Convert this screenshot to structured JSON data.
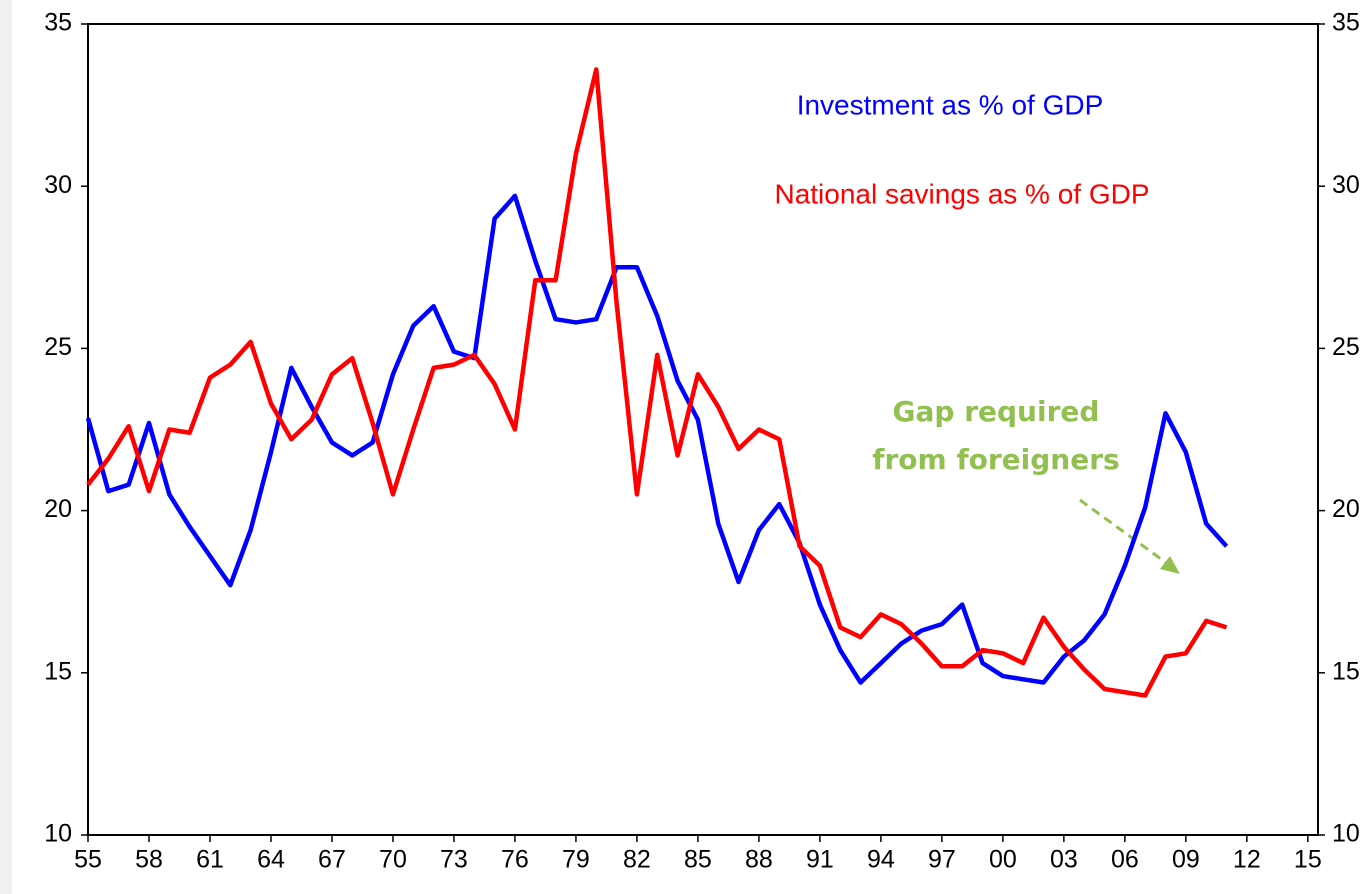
{
  "chart_data": {
    "type": "line",
    "x": [
      1955,
      1956,
      1957,
      1958,
      1959,
      1960,
      1961,
      1962,
      1963,
      1964,
      1965,
      1966,
      1967,
      1968,
      1969,
      1970,
      1971,
      1972,
      1973,
      1974,
      1975,
      1976,
      1977,
      1978,
      1979,
      1980,
      1981,
      1982,
      1983,
      1984,
      1985,
      1986,
      1987,
      1988,
      1989,
      1990,
      1991,
      1992,
      1993,
      1994,
      1995,
      1996,
      1997,
      1998,
      1999,
      2000,
      2001,
      2002,
      2003,
      2004,
      2005,
      2006,
      2007,
      2008,
      2009,
      2010,
      2011
    ],
    "series": [
      {
        "name": "Investment as % of GDP",
        "color": "#0000ff",
        "values": [
          22.85,
          20.6,
          20.8,
          22.7,
          20.5,
          19.5,
          18.6,
          17.7,
          19.4,
          21.8,
          24.4,
          23.2,
          22.1,
          21.7,
          22.1,
          24.2,
          25.7,
          26.3,
          24.9,
          24.7,
          29.0,
          29.7,
          27.7,
          25.9,
          25.8,
          25.9,
          27.5,
          27.5,
          26.0,
          24.0,
          22.8,
          19.6,
          17.8,
          19.4,
          20.2,
          19.0,
          17.1,
          15.7,
          14.7,
          15.3,
          15.9,
          16.3,
          16.5,
          17.1,
          15.3,
          14.9,
          14.8,
          14.7,
          15.5,
          16.0,
          16.8,
          18.3,
          20.1,
          23.0,
          21.8,
          19.6,
          18.9
        ]
      },
      {
        "name": "National savings as % of GDP",
        "color": "#ff0000",
        "values": [
          20.8,
          21.6,
          22.6,
          20.6,
          22.5,
          22.4,
          24.1,
          24.5,
          25.2,
          23.3,
          22.2,
          22.8,
          24.2,
          24.7,
          22.7,
          20.5,
          22.5,
          24.4,
          24.5,
          24.8,
          23.9,
          22.5,
          27.1,
          27.1,
          31.0,
          33.6,
          26.4,
          20.5,
          24.8,
          21.7,
          24.2,
          23.2,
          21.9,
          22.5,
          22.2,
          18.9,
          18.3,
          16.4,
          16.1,
          16.8,
          16.5,
          15.9,
          15.2,
          15.2,
          15.7,
          15.6,
          15.3,
          16.7,
          15.8,
          15.1,
          14.5,
          14.4,
          14.3,
          15.5,
          15.6,
          16.6,
          16.4
        ]
      }
    ],
    "annotation": [
      "Gap required",
      "from foreigners"
    ],
    "annotation_color": "#92c050",
    "xlim": [
      1955,
      2015.5
    ],
    "xticks": [
      {
        "value": 1955,
        "label": "55"
      },
      {
        "value": 1958,
        "label": "58"
      },
      {
        "value": 1961,
        "label": "61"
      },
      {
        "value": 1964,
        "label": "64"
      },
      {
        "value": 1967,
        "label": "67"
      },
      {
        "value": 1970,
        "label": "70"
      },
      {
        "value": 1973,
        "label": "73"
      },
      {
        "value": 1976,
        "label": "76"
      },
      {
        "value": 1979,
        "label": "79"
      },
      {
        "value": 1982,
        "label": "82"
      },
      {
        "value": 1985,
        "label": "85"
      },
      {
        "value": 1988,
        "label": "88"
      },
      {
        "value": 1991,
        "label": "91"
      },
      {
        "value": 1994,
        "label": "94"
      },
      {
        "value": 1997,
        "label": "97"
      },
      {
        "value": 2000,
        "label": "00"
      },
      {
        "value": 2003,
        "label": "03"
      },
      {
        "value": 2006,
        "label": "06"
      },
      {
        "value": 2009,
        "label": "09"
      },
      {
        "value": 2012,
        "label": "12"
      },
      {
        "value": 2015,
        "label": "15"
      }
    ],
    "ylim": [
      10,
      35
    ],
    "yticks": [
      10,
      15,
      20,
      25,
      30,
      35
    ],
    "y2lim": [
      10,
      35
    ],
    "y2ticks": [
      10,
      15,
      20,
      25,
      30,
      35
    ]
  }
}
